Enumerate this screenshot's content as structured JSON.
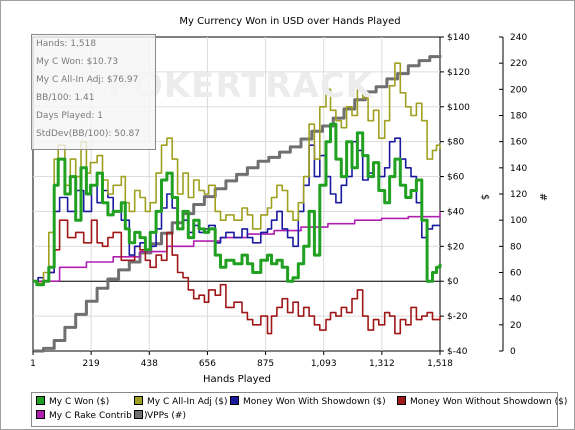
{
  "chart_data": {
    "type": "line",
    "title": "My Currency Won in USD over Hands Played",
    "xlabel": "Hands Played",
    "ylabel_left": "$",
    "ylabel_right": "#",
    "xlim": [
      1,
      1518
    ],
    "ylim": [
      -40,
      140
    ],
    "ylim_right": [
      0,
      240
    ],
    "x_ticks": [
      "1",
      "219",
      "438",
      "656",
      "875",
      "1,093",
      "1,312",
      "1,518"
    ],
    "y_ticks": [
      "$-40",
      "$-20",
      "$0",
      "$20",
      "$40",
      "$60",
      "$80",
      "$100",
      "$120",
      "$140"
    ],
    "y_ticks_right": [
      "0",
      "20",
      "40",
      "60",
      "80",
      "100",
      "120",
      "140",
      "160",
      "180",
      "200",
      "220",
      "240"
    ],
    "grid": true,
    "legend_position": "bottom",
    "series": [
      {
        "name": "My C Won ($)",
        "color": "#22a022",
        "axis": "left",
        "x": [
          1,
          15,
          40,
          60,
          80,
          95,
          120,
          140,
          160,
          180,
          200,
          215,
          240,
          260,
          280,
          300,
          330,
          345,
          360,
          380,
          400,
          420,
          438,
          460,
          480,
          500,
          520,
          540,
          560,
          580,
          600,
          620,
          640,
          656,
          680,
          700,
          720,
          750,
          780,
          800,
          820,
          850,
          875,
          890,
          910,
          930,
          950,
          970,
          990,
          1010,
          1030,
          1050,
          1070,
          1093,
          1110,
          1130,
          1150,
          1170,
          1190,
          1210,
          1230,
          1250,
          1270,
          1290,
          1312,
          1330,
          1350,
          1370,
          1390,
          1410,
          1430,
          1450,
          1470,
          1490,
          1505,
          1518
        ],
        "y": [
          0,
          -2,
          0,
          8,
          55,
          70,
          50,
          60,
          35,
          65,
          50,
          55,
          62,
          45,
          38,
          40,
          45,
          30,
          22,
          28,
          25,
          18,
          28,
          40,
          58,
          62,
          48,
          30,
          40,
          25,
          35,
          30,
          28,
          30,
          15,
          8,
          12,
          10,
          15,
          10,
          5,
          12,
          15,
          10,
          12,
          8,
          0,
          2,
          10,
          20,
          40,
          15,
          55,
          80,
          90,
          70,
          60,
          80,
          65,
          85,
          72,
          60,
          68,
          52,
          45,
          60,
          70,
          55,
          48,
          52,
          58,
          35,
          0,
          5,
          8,
          10
        ]
      },
      {
        "name": "My C All-In Adj ($)",
        "color": "#a0a020",
        "axis": "left",
        "x": [
          1,
          15,
          40,
          60,
          80,
          95,
          120,
          140,
          160,
          180,
          200,
          215,
          240,
          260,
          280,
          300,
          330,
          345,
          360,
          380,
          400,
          420,
          438,
          460,
          480,
          500,
          520,
          540,
          560,
          580,
          600,
          620,
          640,
          656,
          680,
          700,
          720,
          750,
          780,
          800,
          820,
          850,
          875,
          890,
          910,
          930,
          950,
          970,
          990,
          1010,
          1030,
          1050,
          1070,
          1093,
          1110,
          1130,
          1150,
          1170,
          1190,
          1210,
          1230,
          1250,
          1270,
          1290,
          1312,
          1330,
          1350,
          1370,
          1390,
          1410,
          1430,
          1450,
          1470,
          1490,
          1505,
          1518
        ],
        "y": [
          0,
          -1,
          5,
          28,
          70,
          78,
          55,
          70,
          60,
          80,
          62,
          68,
          72,
          58,
          50,
          55,
          60,
          45,
          40,
          52,
          48,
          40,
          45,
          62,
          78,
          82,
          70,
          50,
          62,
          48,
          58,
          52,
          50,
          55,
          40,
          35,
          38,
          35,
          42,
          38,
          30,
          38,
          42,
          48,
          55,
          52,
          40,
          35,
          45,
          60,
          90,
          70,
          100,
          110,
          98,
          92,
          88,
          100,
          95,
          110,
          105,
          92,
          98,
          82,
          92,
          112,
          125,
          108,
          100,
          95,
          102,
          92,
          70,
          75,
          78,
          76
        ]
      },
      {
        "name": "Money Won With Showdown ($)",
        "color": "#1a1aa0",
        "axis": "left",
        "x": [
          1,
          20,
          40,
          60,
          80,
          100,
          130,
          160,
          190,
          219,
          240,
          260,
          280,
          300,
          330,
          360,
          380,
          400,
          420,
          438,
          460,
          480,
          500,
          520,
          540,
          560,
          580,
          600,
          620,
          640,
          656,
          680,
          700,
          720,
          750,
          780,
          800,
          820,
          850,
          875,
          890,
          910,
          930,
          950,
          970,
          990,
          1010,
          1030,
          1050,
          1070,
          1093,
          1110,
          1130,
          1150,
          1170,
          1190,
          1210,
          1230,
          1250,
          1270,
          1290,
          1312,
          1330,
          1350,
          1370,
          1390,
          1410,
          1430,
          1450,
          1470,
          1490,
          1518
        ],
        "y": [
          0,
          2,
          0,
          5,
          40,
          48,
          40,
          52,
          40,
          55,
          45,
          52,
          48,
          40,
          35,
          15,
          20,
          22,
          18,
          20,
          30,
          42,
          50,
          42,
          30,
          35,
          28,
          32,
          28,
          30,
          32,
          22,
          25,
          28,
          25,
          30,
          25,
          22,
          28,
          30,
          35,
          40,
          30,
          25,
          20,
          40,
          55,
          78,
          60,
          72,
          60,
          50,
          45,
          55,
          60,
          80,
          75,
          58,
          62,
          68,
          60,
          65,
          80,
          82,
          70,
          65,
          60,
          45,
          25,
          30,
          32,
          32
        ]
      },
      {
        "name": "Money Won Without Showdown ($)",
        "color": "#a01818",
        "axis": "left",
        "x": [
          1,
          20,
          40,
          60,
          80,
          100,
          130,
          160,
          190,
          219,
          240,
          260,
          280,
          300,
          330,
          360,
          380,
          400,
          420,
          438,
          460,
          480,
          500,
          520,
          540,
          560,
          580,
          600,
          620,
          640,
          656,
          680,
          700,
          720,
          750,
          780,
          800,
          820,
          850,
          875,
          890,
          910,
          930,
          950,
          970,
          990,
          1010,
          1030,
          1050,
          1070,
          1093,
          1110,
          1130,
          1150,
          1170,
          1190,
          1210,
          1230,
          1250,
          1270,
          1290,
          1312,
          1330,
          1350,
          1370,
          1390,
          1410,
          1430,
          1450,
          1470,
          1490,
          1518
        ],
        "y": [
          0,
          -2,
          0,
          5,
          18,
          35,
          25,
          28,
          22,
          35,
          22,
          20,
          25,
          28,
          12,
          12,
          20,
          18,
          12,
          8,
          15,
          12,
          28,
          15,
          5,
          2,
          -5,
          -10,
          -8,
          -12,
          -5,
          -8,
          -2,
          -15,
          -12,
          -18,
          -22,
          -25,
          -20,
          -30,
          -20,
          -15,
          -10,
          -18,
          -12,
          -20,
          -15,
          -20,
          -25,
          -28,
          -22,
          -18,
          -20,
          -15,
          -18,
          -10,
          -5,
          -20,
          -28,
          -22,
          -25,
          -18,
          -20,
          -30,
          -22,
          -25,
          -15,
          -22,
          -20,
          -18,
          -22,
          -20
        ]
      },
      {
        "name": "My C Rake Contrib ($)",
        "color": "#b020b0",
        "axis": "left",
        "x": [
          1,
          100,
          200,
          300,
          400,
          500,
          600,
          700,
          800,
          900,
          1000,
          1100,
          1200,
          1300,
          1400,
          1518
        ],
        "y": [
          0,
          8,
          11,
          14,
          17,
          20,
          23,
          25,
          27,
          29,
          31,
          33,
          35,
          36,
          37,
          40
        ]
      },
      {
        "name": "VPPs (#)",
        "color": "#707070",
        "axis": "right",
        "x": [
          1,
          40,
          80,
          120,
          160,
          200,
          240,
          280,
          320,
          360,
          400,
          440,
          480,
          520,
          560,
          600,
          640,
          680,
          720,
          760,
          800,
          840,
          880,
          920,
          960,
          1000,
          1040,
          1080,
          1120,
          1160,
          1200,
          1240,
          1280,
          1320,
          1360,
          1400,
          1440,
          1480,
          1518
        ],
        "y": [
          0,
          2,
          8,
          18,
          28,
          38,
          48,
          55,
          62,
          68,
          75,
          82,
          90,
          98,
          105,
          112,
          118,
          124,
          130,
          135,
          140,
          145,
          148,
          152,
          156,
          162,
          168,
          172,
          178,
          185,
          192,
          198,
          202,
          208,
          212,
          218,
          222,
          225,
          226
        ]
      }
    ]
  },
  "stats": {
    "hands": "Hands: 1,518",
    "won": "My C Won: $10.73",
    "allin": "My C All-In Adj: $76.97",
    "bb100": "BB/100: 1.41",
    "days": "Days Played: 1",
    "stddev": "StdDev(BB/100): 50.87"
  },
  "watermark": "POKERTRACK",
  "legend_rows": [
    [
      "My C Won ($)",
      "My C All-In Adj ($)",
      "Money Won With Showdown ($)",
      "Money Won Without Showdown ($)"
    ],
    [
      "My C Rake Contrib ($)",
      "VPPs (#)"
    ]
  ]
}
